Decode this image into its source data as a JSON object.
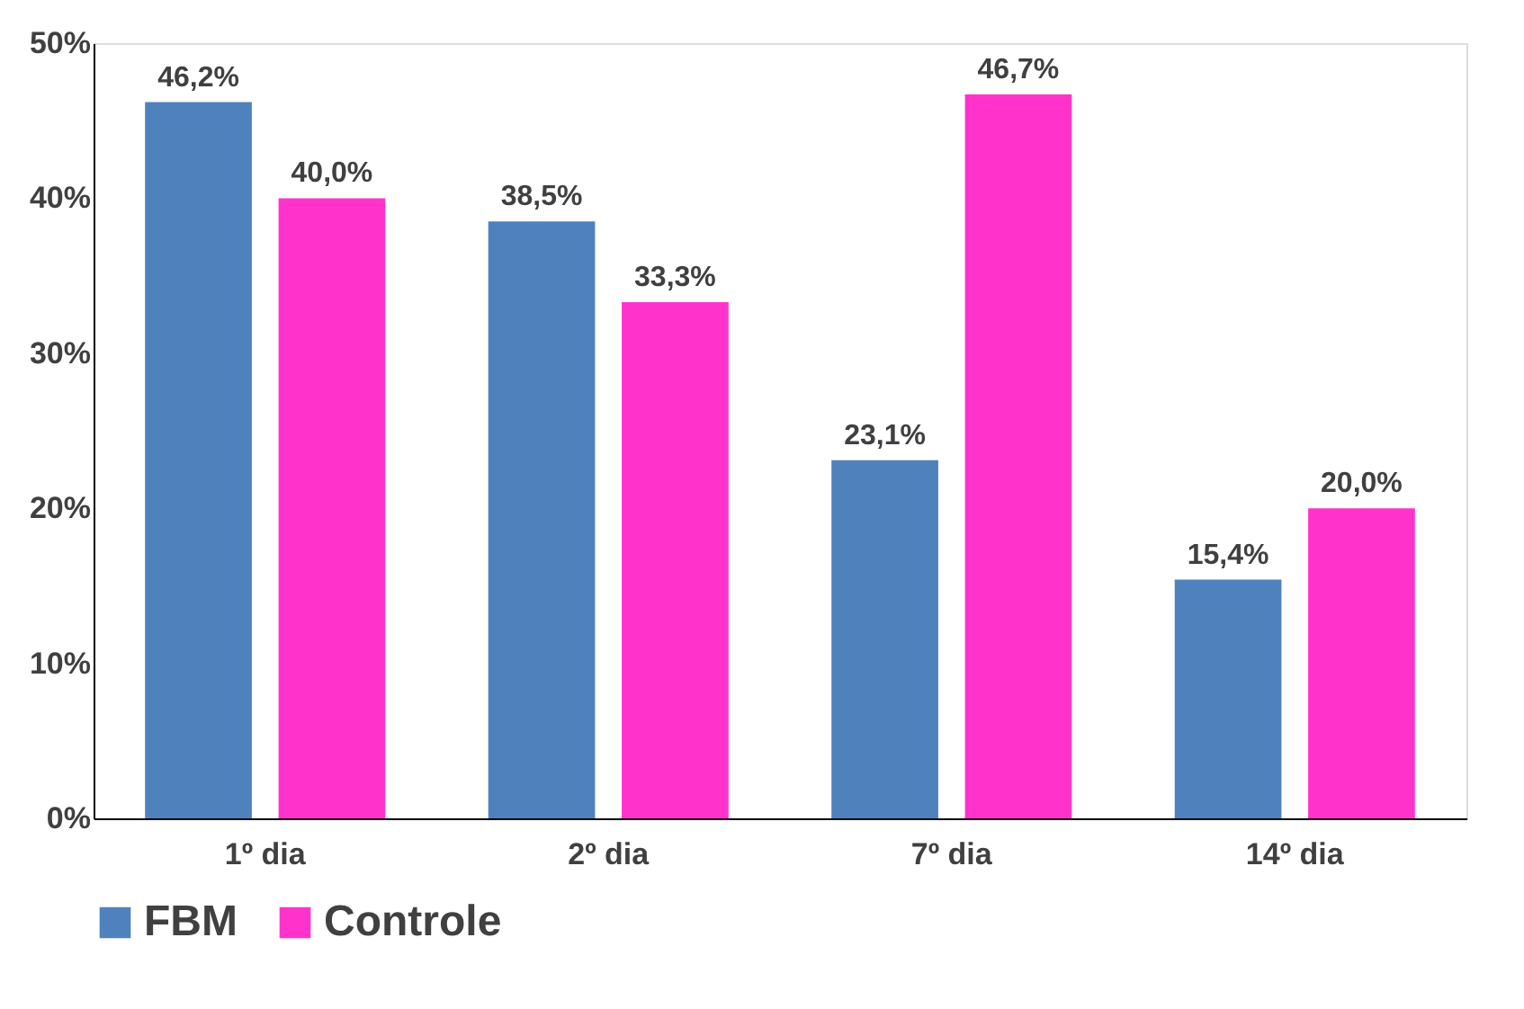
{
  "chart_data": {
    "type": "bar",
    "categories": [
      "1º dia",
      "2º dia",
      "7º dia",
      "14º dia"
    ],
    "series": [
      {
        "name": "FBM",
        "color": "#4f81bd",
        "values": [
          46.2,
          38.5,
          23.1,
          15.4
        ],
        "value_labels": [
          "46,2%",
          "38,5%",
          "23,1%",
          "15,4%"
        ]
      },
      {
        "name": "Controle",
        "color": "#ff33cc",
        "values": [
          40.0,
          33.3,
          46.7,
          20.0
        ],
        "value_labels": [
          "40,0%",
          "33,3%",
          "46,7%",
          "20,0%"
        ]
      }
    ],
    "ylim": [
      0,
      50
    ],
    "yticks": [
      {
        "value": 0,
        "label": "0%"
      },
      {
        "value": 10,
        "label": "10%"
      },
      {
        "value": 20,
        "label": "20%"
      },
      {
        "value": 30,
        "label": "30%"
      },
      {
        "value": 40,
        "label": "40%"
      },
      {
        "value": 50,
        "label": "50%"
      }
    ],
    "legend": "bottom",
    "grid": false
  }
}
